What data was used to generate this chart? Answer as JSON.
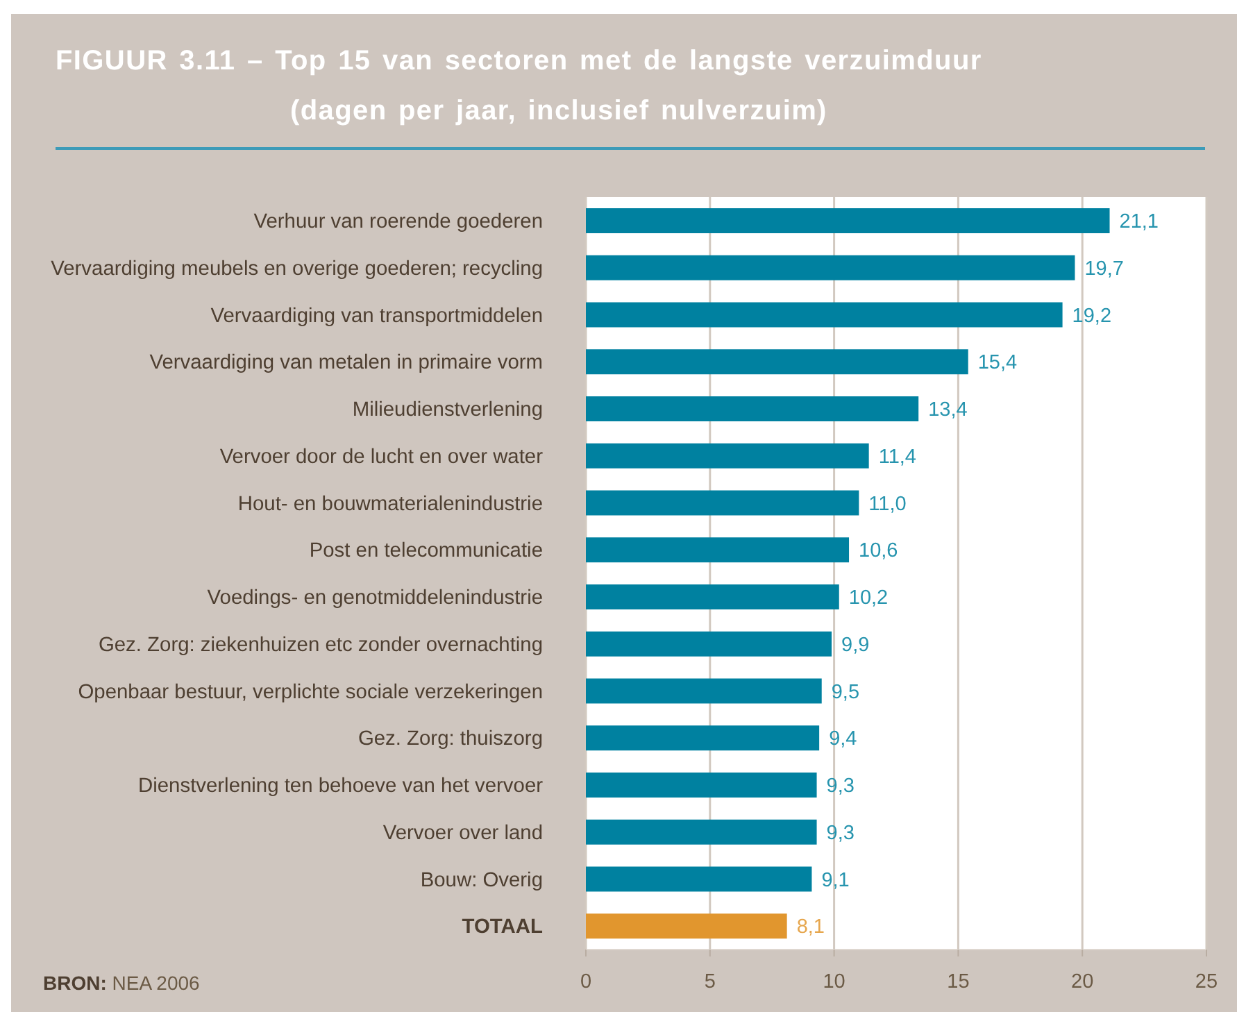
{
  "chart_data": {
    "type": "bar",
    "orientation": "horizontal",
    "title": "FIGUUR 3.11 – Top 15 van sectoren met de langste verzuimduur",
    "subtitle": "(dagen per jaar, inclusief nulverzuim)",
    "categories": [
      "Verhuur van roerende goederen",
      "Vervaardiging meubels en overige goederen; recycling",
      "Vervaardiging van transportmiddelen",
      "Vervaardiging van metalen in primaire vorm",
      "Milieudienstverlening",
      "Vervoer door de lucht en over water",
      "Hout- en bouwmaterialenindustrie",
      "Post en telecommunicatie",
      "Voedings- en genotmiddelenindustrie",
      "Gez. Zorg: ziekenhuizen etc zonder overnachting",
      "Openbaar bestuur, verplichte sociale verzekeringen",
      "Gez. Zorg: thuiszorg",
      "Dienstverlening ten behoeve van het vervoer",
      "Vervoer over land",
      "Bouw: Overig",
      "TOTAAL"
    ],
    "values": [
      21.1,
      19.7,
      19.2,
      15.4,
      13.4,
      11.4,
      11.0,
      10.6,
      10.2,
      9.9,
      9.5,
      9.4,
      9.3,
      9.3,
      9.1,
      8.1
    ],
    "colors": [
      "#0081a0",
      "#0081a0",
      "#0081a0",
      "#0081a0",
      "#0081a0",
      "#0081a0",
      "#0081a0",
      "#0081a0",
      "#0081a0",
      "#0081a0",
      "#0081a0",
      "#0081a0",
      "#0081a0",
      "#0081a0",
      "#0081a0",
      "#e1962e"
    ],
    "value_labels": [
      "21,1",
      "19,7",
      "19,2",
      "15,4",
      "13,4",
      "11,4",
      "11,0",
      "10,6",
      "10,2",
      "9,9",
      "9,5",
      "9,4",
      "9,3",
      "9,3",
      "9,1",
      "8,1"
    ],
    "xlim": [
      0,
      25
    ],
    "xticks": [
      0,
      5,
      10,
      15,
      20,
      25
    ],
    "grid": "x",
    "annotations": [
      "BRON: NEA 2006"
    ]
  }
}
